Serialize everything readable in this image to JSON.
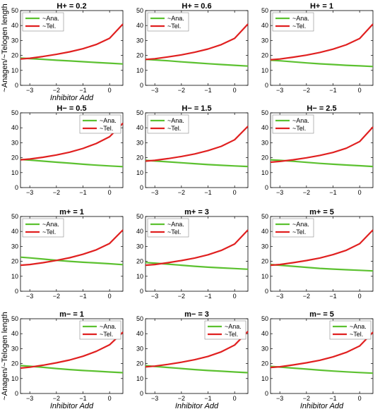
{
  "colors": {
    "ana": "#5cc130",
    "tel": "#e02020"
  },
  "chart_data": [
    {
      "type": "line",
      "title": "H+ = 0.2",
      "xlabel": "Inhibitor Add",
      "ylabel": "~Anagen/~Telogen length",
      "xlim": [
        -3.35,
        0.5
      ],
      "ylim": [
        0,
        50
      ],
      "xticks": [
        -3,
        -2,
        -1,
        0
      ],
      "yticks": [
        0,
        10,
        20,
        30,
        40,
        50
      ],
      "legend": "upper-left",
      "grid": false,
      "x": [
        -3.35,
        -3,
        -2.5,
        -2,
        -1.5,
        -1,
        -0.5,
        0,
        0.5
      ],
      "series": [
        {
          "name": "~Ana.",
          "color": "ana",
          "values": [
            18.2,
            17.9,
            17.4,
            16.8,
            16.3,
            15.8,
            15.3,
            14.8,
            14.3
          ]
        },
        {
          "name": "~Tel.",
          "color": "tel",
          "values": [
            17.6,
            18.1,
            19.3,
            20.7,
            22.4,
            24.5,
            27.3,
            31.5,
            41.0
          ]
        }
      ]
    },
    {
      "type": "line",
      "title": "H+ = 0.6",
      "xlabel": "",
      "ylabel": "",
      "xlim": [
        -3.35,
        0.5
      ],
      "ylim": [
        0,
        50
      ],
      "xticks": [
        -3,
        -2,
        -1,
        0
      ],
      "yticks": [
        0,
        10,
        20,
        30,
        40,
        50
      ],
      "legend": "upper-left",
      "grid": false,
      "x": [
        -3.35,
        -3,
        -2.5,
        -2,
        -1.5,
        -1,
        -0.5,
        0,
        0.5
      ],
      "series": [
        {
          "name": "~Ana.",
          "color": "ana",
          "values": [
            17.4,
            17.0,
            16.4,
            15.7,
            15.1,
            14.5,
            13.9,
            13.4,
            12.9
          ]
        },
        {
          "name": "~Tel.",
          "color": "tel",
          "values": [
            17.3,
            17.8,
            19.0,
            20.4,
            22.1,
            24.3,
            27.2,
            31.4,
            41.0
          ]
        }
      ]
    },
    {
      "type": "line",
      "title": "H+ = 1",
      "xlabel": "",
      "ylabel": "",
      "xlim": [
        -3.35,
        0.5
      ],
      "ylim": [
        0,
        50
      ],
      "xticks": [
        -3,
        -2,
        -1,
        0
      ],
      "yticks": [
        0,
        10,
        20,
        30,
        40,
        50
      ],
      "legend": "upper-left",
      "grid": false,
      "x": [
        -3.35,
        -3,
        -2.5,
        -2,
        -1.5,
        -1,
        -0.5,
        0,
        0.5
      ],
      "series": [
        {
          "name": "~Ana.",
          "color": "ana",
          "values": [
            16.8,
            16.4,
            15.7,
            15.0,
            14.4,
            13.9,
            13.4,
            13.0,
            12.6
          ]
        },
        {
          "name": "~Tel.",
          "color": "tel",
          "values": [
            17.1,
            17.6,
            18.8,
            20.2,
            22.0,
            24.2,
            27.1,
            31.3,
            41.0
          ]
        }
      ]
    },
    {
      "type": "line",
      "title": "H− = 0.5",
      "xlabel": "",
      "ylabel": "",
      "xlim": [
        -3.35,
        0.5
      ],
      "ylim": [
        0,
        50
      ],
      "xticks": [
        -3,
        -2,
        -1,
        0
      ],
      "yticks": [
        0,
        10,
        20,
        30,
        40,
        50
      ],
      "legend": "upper-right",
      "grid": false,
      "x": [
        -3.35,
        -3,
        -2.5,
        -2,
        -1.5,
        -1,
        -0.5,
        0,
        0.5
      ],
      "series": [
        {
          "name": "~Ana.",
          "color": "ana",
          "values": [
            18.8,
            18.4,
            17.7,
            17.0,
            16.3,
            15.6,
            15.0,
            14.5,
            14.0
          ]
        },
        {
          "name": "~Tel.",
          "color": "tel",
          "values": [
            18.6,
            19.1,
            20.3,
            21.8,
            23.7,
            26.2,
            29.5,
            34.0,
            43.0
          ]
        }
      ]
    },
    {
      "type": "line",
      "title": "H− = 1.5",
      "xlabel": "",
      "ylabel": "",
      "xlim": [
        -3.35,
        0.5
      ],
      "ylim": [
        0,
        50
      ],
      "xticks": [
        -3,
        -2,
        -1,
        0
      ],
      "yticks": [
        0,
        10,
        20,
        30,
        40,
        50
      ],
      "legend": "upper-left",
      "grid": false,
      "x": [
        -3.35,
        -3,
        -2.5,
        -2,
        -1.5,
        -1,
        -0.5,
        0,
        0.5
      ],
      "series": [
        {
          "name": "~Ana.",
          "color": "ana",
          "values": [
            18.2,
            17.8,
            17.2,
            16.6,
            16.0,
            15.4,
            14.9,
            14.5,
            14.1
          ]
        },
        {
          "name": "~Tel.",
          "color": "tel",
          "values": [
            17.7,
            18.2,
            19.4,
            20.8,
            22.5,
            24.7,
            27.6,
            32.0,
            41.0
          ]
        }
      ]
    },
    {
      "type": "line",
      "title": "H− = 2.5",
      "xlabel": "",
      "ylabel": "",
      "xlim": [
        -3.35,
        0.5
      ],
      "ylim": [
        0,
        50
      ],
      "xticks": [
        -3,
        -2,
        -1,
        0
      ],
      "yticks": [
        0,
        10,
        20,
        30,
        40,
        50
      ],
      "legend": "upper-left",
      "grid": false,
      "x": [
        -3.35,
        -3,
        -2.5,
        -2,
        -1.5,
        -1,
        -0.5,
        0,
        0.5
      ],
      "series": [
        {
          "name": "~Ana.",
          "color": "ana",
          "values": [
            18.6,
            18.2,
            17.6,
            16.9,
            16.2,
            15.6,
            15.1,
            14.6,
            14.1
          ]
        },
        {
          "name": "~Tel.",
          "color": "tel",
          "values": [
            17.0,
            17.5,
            18.6,
            19.9,
            21.5,
            23.5,
            26.3,
            30.8,
            40.5
          ]
        }
      ]
    },
    {
      "type": "line",
      "title": "m+ = 1",
      "xlabel": "",
      "ylabel": "",
      "xlim": [
        -3.35,
        0.5
      ],
      "ylim": [
        0,
        50
      ],
      "xticks": [
        -3,
        -2,
        -1,
        0
      ],
      "yticks": [
        0,
        10,
        20,
        30,
        40,
        50
      ],
      "legend": "upper-left",
      "grid": false,
      "x": [
        -3.35,
        -3,
        -2.5,
        -2,
        -1.5,
        -1,
        -0.5,
        0,
        0.5
      ],
      "series": [
        {
          "name": "~Ana.",
          "color": "ana",
          "values": [
            22.8,
            22.3,
            21.5,
            20.7,
            20.0,
            19.4,
            18.9,
            18.4,
            17.8
          ]
        },
        {
          "name": "~Tel.",
          "color": "tel",
          "values": [
            17.4,
            17.9,
            19.1,
            20.6,
            22.4,
            24.7,
            27.7,
            32.0,
            41.0
          ]
        }
      ]
    },
    {
      "type": "line",
      "title": "m+ = 3",
      "xlabel": "",
      "ylabel": "",
      "xlim": [
        -3.35,
        0.5
      ],
      "ylim": [
        0,
        50
      ],
      "xticks": [
        -3,
        -2,
        -1,
        0
      ],
      "yticks": [
        0,
        10,
        20,
        30,
        40,
        50
      ],
      "legend": "upper-left",
      "grid": false,
      "x": [
        -3.35,
        -3,
        -2.5,
        -2,
        -1.5,
        -1,
        -0.5,
        0,
        0.5
      ],
      "series": [
        {
          "name": "~Ana.",
          "color": "ana",
          "values": [
            19.2,
            18.8,
            18.1,
            17.4,
            16.7,
            16.1,
            15.6,
            15.2,
            14.7
          ]
        },
        {
          "name": "~Tel.",
          "color": "tel",
          "values": [
            17.4,
            17.9,
            19.1,
            20.5,
            22.2,
            24.4,
            27.3,
            31.6,
            41.0
          ]
        }
      ]
    },
    {
      "type": "line",
      "title": "m+ = 5",
      "xlabel": "",
      "ylabel": "",
      "xlim": [
        -3.35,
        0.5
      ],
      "ylim": [
        0,
        50
      ],
      "xticks": [
        -3,
        -2,
        -1,
        0
      ],
      "yticks": [
        0,
        10,
        20,
        30,
        40,
        50
      ],
      "legend": "upper-left",
      "grid": false,
      "x": [
        -3.35,
        -3,
        -2.5,
        -2,
        -1.5,
        -1,
        -0.5,
        0,
        0.5
      ],
      "series": [
        {
          "name": "~Ana.",
          "color": "ana",
          "values": [
            17.9,
            17.4,
            16.7,
            16.0,
            15.3,
            14.8,
            14.4,
            14.0,
            13.6
          ]
        },
        {
          "name": "~Tel.",
          "color": "tel",
          "values": [
            17.4,
            17.9,
            19.1,
            20.5,
            22.2,
            24.5,
            27.4,
            31.8,
            41.0
          ]
        }
      ]
    },
    {
      "type": "line",
      "title": "m− = 1",
      "xlabel": "Inhibitor Add",
      "ylabel": "~Anagen/~Telogen length",
      "xlim": [
        -3.35,
        0.5
      ],
      "ylim": [
        0,
        50
      ],
      "xticks": [
        -3,
        -2,
        -1,
        0
      ],
      "yticks": [
        0,
        10,
        20,
        30,
        40,
        50
      ],
      "legend": "upper-right",
      "grid": false,
      "x": [
        -3.35,
        -3,
        -2.5,
        -2,
        -1.5,
        -1,
        -0.5,
        0,
        0.5
      ],
      "series": [
        {
          "name": "~Ana.",
          "color": "ana",
          "values": [
            18.7,
            18.2,
            17.5,
            16.7,
            16.0,
            15.4,
            14.9,
            14.4,
            13.9
          ]
        },
        {
          "name": "~Tel.",
          "color": "tel",
          "values": [
            17.0,
            17.6,
            18.9,
            20.5,
            22.4,
            24.9,
            28.2,
            32.6,
            41.0
          ]
        }
      ]
    },
    {
      "type": "line",
      "title": "m− = 3",
      "xlabel": "Inhibitor Add",
      "ylabel": "",
      "xlim": [
        -3.35,
        0.5
      ],
      "ylim": [
        0,
        50
      ],
      "xticks": [
        -3,
        -2,
        -1,
        0
      ],
      "yticks": [
        0,
        10,
        20,
        30,
        40,
        50
      ],
      "legend": "upper-right",
      "grid": false,
      "x": [
        -3.35,
        -3,
        -2.5,
        -2,
        -1.5,
        -1,
        -0.5,
        0,
        0.5
      ],
      "series": [
        {
          "name": "~Ana.",
          "color": "ana",
          "values": [
            18.6,
            18.1,
            17.4,
            16.7,
            16.0,
            15.4,
            14.9,
            14.4,
            13.9
          ]
        },
        {
          "name": "~Tel.",
          "color": "tel",
          "values": [
            17.8,
            18.3,
            19.5,
            20.9,
            22.6,
            24.8,
            27.9,
            32.4,
            41.5
          ]
        }
      ]
    },
    {
      "type": "line",
      "title": "m− = 5",
      "xlabel": "Inhibitor Add",
      "ylabel": "",
      "xlim": [
        -3.35,
        0.5
      ],
      "ylim": [
        0,
        50
      ],
      "xticks": [
        -3,
        -2,
        -1,
        0
      ],
      "yticks": [
        0,
        10,
        20,
        30,
        40,
        50
      ],
      "legend": "upper-right",
      "grid": false,
      "x": [
        -3.35,
        -3,
        -2.5,
        -2,
        -1.5,
        -1,
        -0.5,
        0,
        0.5
      ],
      "series": [
        {
          "name": "~Ana.",
          "color": "ana",
          "values": [
            18.1,
            17.7,
            17.0,
            16.3,
            15.6,
            15.0,
            14.5,
            14.0,
            13.6
          ]
        },
        {
          "name": "~Tel.",
          "color": "tel",
          "values": [
            17.4,
            17.9,
            19.1,
            20.5,
            22.2,
            24.5,
            27.5,
            31.8,
            41.0
          ]
        }
      ]
    }
  ]
}
